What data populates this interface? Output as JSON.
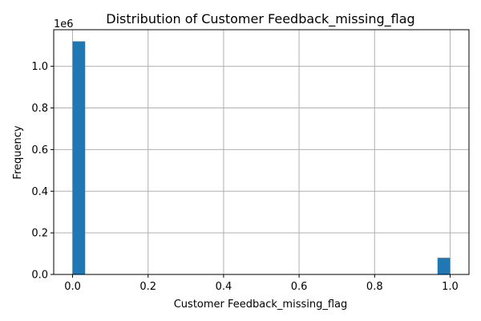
{
  "chart_data": {
    "type": "bar",
    "title": "Distribution of Customer Feedback_missing_flag",
    "xlabel": "Customer Feedback_missing_flag",
    "ylabel": "Frequency",
    "y_offset_label": "1e6",
    "xlim": [
      -0.05,
      1.05
    ],
    "ylim": [
      0,
      1.176
    ],
    "x_ticks": [
      0.0,
      0.2,
      0.4,
      0.6,
      0.8,
      1.0
    ],
    "x_tick_labels": [
      "0.0",
      "0.2",
      "0.4",
      "0.6",
      "0.8",
      "1.0"
    ],
    "y_ticks": [
      0.0,
      0.2,
      0.4,
      0.6,
      0.8,
      1.0
    ],
    "y_tick_labels": [
      "0.0",
      "0.2",
      "0.4",
      "0.6",
      "0.8",
      "1.0"
    ],
    "grid": true,
    "bins": [
      {
        "x_start": 0.0,
        "x_end": 0.0333,
        "value": 1.12
      },
      {
        "x_start": 0.9667,
        "x_end": 1.0,
        "value": 0.08
      }
    ],
    "bar_color": "#1f77b4",
    "grid_color": "#b0b0b0"
  }
}
